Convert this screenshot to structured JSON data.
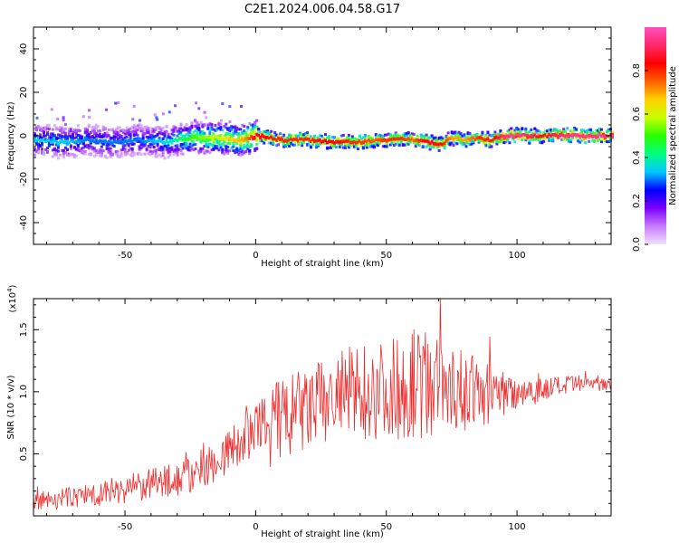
{
  "figure_title": "C2E1.2024.006.04.58.G17",
  "colors": {
    "snr_line": "#ef2a2a",
    "background": "#ffffff",
    "frame": "#000000",
    "colormap": [
      "#f0e0ff",
      "#c77dff",
      "#7a00ff",
      "#0000ff",
      "#00c8ff",
      "#00ff80",
      "#2aff00",
      "#c8ff00",
      "#ffd000",
      "#ff6000",
      "#ff0000",
      "#ff2a6a",
      "#ff4fc0"
    ]
  },
  "chart_data": [
    {
      "type": "heatmap",
      "title": "",
      "xlabel": "Height of straight line (km)",
      "ylabel": "Frequency (Hz)",
      "xlim": [
        -85,
        136
      ],
      "ylim": [
        -50,
        50
      ],
      "xticks": [
        -50,
        0,
        50,
        100
      ],
      "xtick_labels": [
        "-50",
        "0",
        "50",
        "100"
      ],
      "yticks": [
        -40,
        -20,
        0,
        20,
        40
      ],
      "ytick_labels": [
        "-40",
        "-20",
        "0",
        "20",
        "40"
      ],
      "grid": false,
      "colorbar": {
        "label": "Normalized spectral amplitude",
        "range": [
          0,
          1
        ],
        "ticks": [
          0.0,
          0.2,
          0.4,
          0.6,
          0.8
        ],
        "tick_labels": [
          "0.0",
          "0.2",
          "0.4",
          "0.6",
          "0.8"
        ]
      },
      "ridge": {
        "x": [
          -85,
          -75,
          -65,
          -55,
          -45,
          -35,
          -25,
          -15,
          -5,
          0,
          10,
          20,
          30,
          35,
          40,
          45,
          50,
          55,
          60,
          65,
          70,
          75,
          80,
          85,
          90,
          95,
          100,
          110,
          120,
          136
        ],
        "frequency": [
          -2,
          -3,
          -2,
          -3,
          -2,
          -3,
          -1,
          -1,
          -2,
          0,
          -2,
          -2,
          -3,
          -3,
          -3,
          -2,
          -2,
          -1,
          -2,
          -3,
          -4,
          -1,
          -2,
          -1,
          -2,
          0,
          0,
          0,
          0,
          0
        ],
        "amplitude": [
          0.35,
          0.35,
          0.3,
          0.3,
          0.3,
          0.35,
          0.5,
          0.6,
          0.7,
          0.85,
          0.8,
          0.8,
          0.85,
          0.8,
          0.8,
          0.75,
          0.8,
          0.8,
          0.75,
          0.85,
          0.85,
          0.7,
          0.7,
          0.8,
          0.8,
          0.95,
          0.95,
          0.85,
          0.95,
          0.95
        ]
      }
    },
    {
      "type": "line",
      "title": "",
      "xlabel": "Height of straight line (km)",
      "ylabel": "SNR (10 * v/v)",
      "y_multiplier_label": "(x10",
      "y_multiplier_exponent": "4",
      "y_multiplier_close": ")",
      "xlim": [
        -85,
        136
      ],
      "ylim": [
        0,
        1.75
      ],
      "xticks": [
        -50,
        0,
        50,
        100
      ],
      "xtick_labels": [
        "-50",
        "0",
        "50",
        "100"
      ],
      "yticks": [
        0.5,
        1.0,
        1.5
      ],
      "ytick_labels": [
        "0.5",
        "1.0",
        "1.5"
      ],
      "grid": false,
      "series": [
        {
          "envelope_x": [
            -85,
            -70,
            -55,
            -40,
            -25,
            -15,
            -5,
            0,
            5,
            10,
            20,
            30,
            40,
            50,
            60,
            70,
            80,
            90,
            100,
            110,
            120,
            136
          ],
          "envelope_y": [
            0.12,
            0.15,
            0.2,
            0.25,
            0.32,
            0.45,
            0.6,
            0.7,
            0.72,
            0.78,
            0.85,
            0.95,
            1.0,
            1.02,
            1.05,
            1.05,
            1.0,
            0.98,
            1.0,
            1.02,
            1.05,
            1.08
          ],
          "spread_y": [
            0.07,
            0.09,
            0.11,
            0.13,
            0.16,
            0.18,
            0.2,
            0.2,
            0.35,
            0.35,
            0.35,
            0.38,
            0.4,
            0.4,
            0.45,
            0.4,
            0.32,
            0.25,
            0.15,
            0.1,
            0.08,
            0.06
          ]
        }
      ]
    }
  ]
}
